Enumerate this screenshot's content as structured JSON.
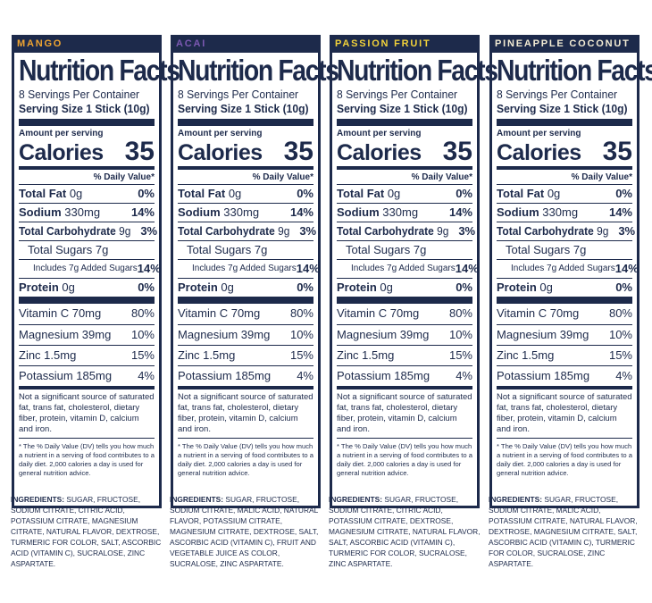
{
  "common": {
    "title": "Nutrition Facts",
    "servings": "8 Servings Per Container",
    "serving_size": "Serving Size 1 Stick (10g)",
    "amount_per_serving": "Amount per serving",
    "calories_label": "Calories",
    "calories_value": "35",
    "dv_header": "% Daily Value*",
    "total_fat_label": "Total Fat",
    "total_fat_amount": "0g",
    "total_fat_dv": "0%",
    "sodium_label": "Sodium",
    "sodium_amount": "330mg",
    "sodium_dv": "14%",
    "carb_label": "Total Carbohydrate",
    "carb_amount": "9g",
    "carb_dv": "3%",
    "sugars": "Total Sugars 7g",
    "added_sugars": "Includes 7g Added Sugars",
    "added_sugars_dv": "14%",
    "protein_label": "Protein",
    "protein_amount": "0g",
    "protein_dv": "0%",
    "vitamin_c": "Vitamin C 70mg",
    "vitamin_c_dv": "80%",
    "magnesium": "Magnesium 39mg",
    "magnesium_dv": "10%",
    "zinc": "Zinc 1.5mg",
    "zinc_dv": "15%",
    "potassium": "Potassium 185mg",
    "potassium_dv": "4%",
    "not_significant": "Not a significant source of saturated fat, trans fat, cholesterol, dietary fiber, protein, vitamin D, calcium and iron.",
    "dv_footnote": "* The % Daily Value (DV) tells you how much a nutrient in a serving of food contributes to a daily diet. 2,000 calories a day is used for general nutrition advice.",
    "ingredients_label": "INGREDIENTS:"
  },
  "panels": [
    {
      "flavor": "MANGO",
      "flavor_color": "#f0a531",
      "ingredients": "SUGAR, FRUCTOSE, SODIUM CITRATE, CITRIC ACID, POTASSIUM CITRATE, MAGNESIUM CITRATE, NATURAL FLAVOR, DEXTROSE, TURMERIC FOR COLOR, SALT, ASCORBIC ACID (VITAMIN C), SUCRALOSE, ZINC ASPARTATE."
    },
    {
      "flavor": "ACAI",
      "flavor_color": "#7c59b3",
      "ingredients": "SUGAR, FRUCTOSE, SODIUM CITRATE, MALIC ACID, NATURAL FLAVOR, POTASSIUM CITRATE, MAGNESIUM CITRATE, DEXTROSE, SALT, ASCORBIC ACID (VITAMIN C), FRUIT AND VEGETABLE JUICE AS COLOR, SUCRALOSE, ZINC ASPARTATE."
    },
    {
      "flavor": "PASSION FRUIT",
      "flavor_color": "#f2d23a",
      "ingredients": "SUGAR, FRUCTOSE, SODIUM CITRATE, CITRIC ACID, POTASSIUM CITRATE, DEXTROSE, MAGNESIUM CITRATE, NATURAL FLAVOR, SALT, ASCORBIC ACID (VITAMIN C), TURMERIC FOR COLOR, SUCRALOSE, ZINC ASPARTATE."
    },
    {
      "flavor": "PINEAPPLE COCONUT",
      "flavor_color": "#f3ecd4",
      "ingredients": "SUGAR, FRUCTOSE, SODIUM CITRATE, MALIC ACID, POTASSIUM CITRATE, NATURAL FLAVOR, DEXTROSE, MAGNESIUM CITRATE, SALT, ASCORBIC ACID (VITAMIN C), TURMERIC FOR COLOR, SUCRALOSE, ZINC ASPARTATE."
    }
  ]
}
